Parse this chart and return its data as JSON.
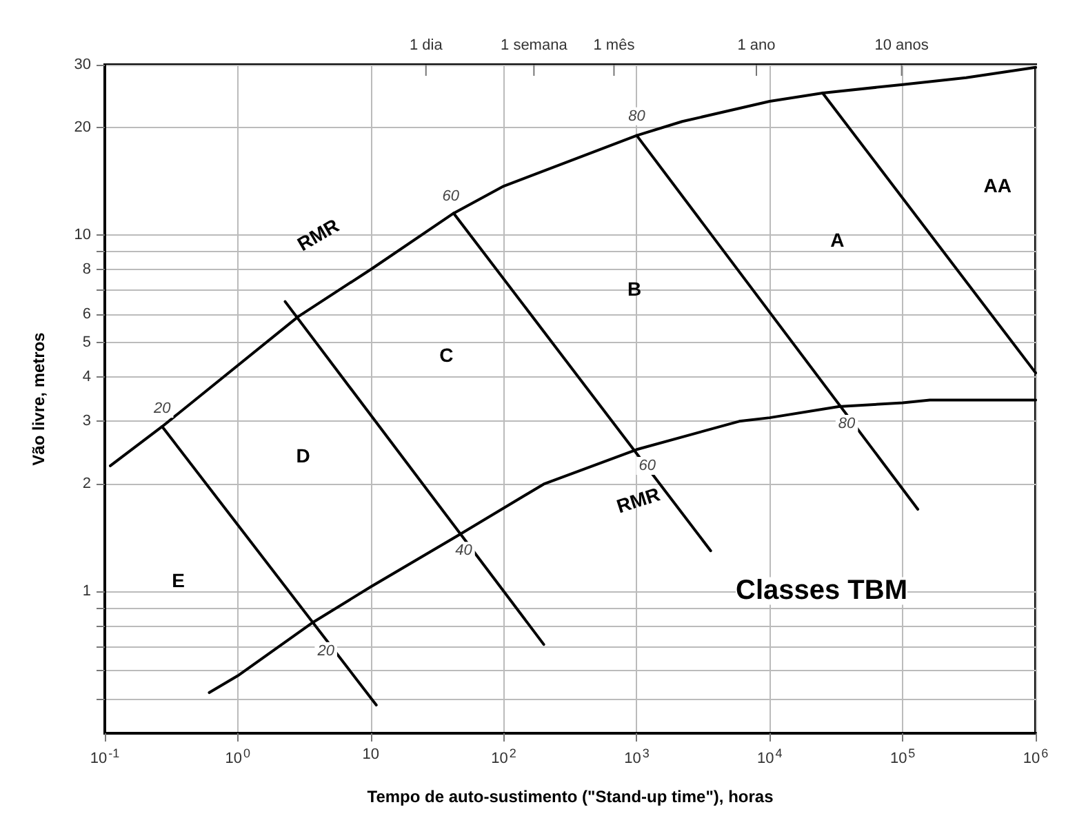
{
  "chart_data": {
    "type": "line",
    "xlabel": "Tempo de auto-sustimento (\"Stand-up time\"), horas",
    "ylabel": "Vão livre, metros",
    "log": "xy",
    "grid": true,
    "marker": "none",
    "line_style": "solid",
    "xlim": [
      0.1,
      1000000
    ],
    "xticks": [
      {
        "value": 0.1,
        "label": "10$^{-1}$"
      },
      {
        "value": 1,
        "label": "10$^{0}$"
      },
      10,
      {
        "value": 100,
        "label": "10$^{2}$"
      },
      {
        "value": 1000,
        "label": "10$^{3}$"
      },
      {
        "value": 10000,
        "label": "10$^{4}$"
      },
      {
        "value": 100000,
        "label": "10$^{5}$"
      },
      {
        "value": 1000000,
        "label": "10$^{6}$"
      }
    ],
    "ylim": [
      0.4,
      30
    ],
    "yticks": [
      {
        "value": 0.5,
        "label": null
      },
      {
        "value": 0.6,
        "label": null
      },
      {
        "value": 0.7,
        "label": null
      },
      {
        "value": 0.8,
        "label": null
      },
      {
        "value": 0.9,
        "label": null
      },
      1,
      2,
      3,
      4,
      5,
      6,
      {
        "value": 7,
        "label": null
      },
      8,
      {
        "value": 9,
        "label": null
      },
      10,
      20,
      30
    ],
    "series": [
      {
        "color": "#000000",
        "x": [
          0.11,
          0.27,
          2.85,
          10,
          42,
          100,
          1000,
          2200,
          10000,
          25000,
          100000,
          300000,
          1000000
        ],
        "values": [
          2.25,
          2.9,
          5.9,
          8.0,
          11.5,
          13.7,
          19,
          20.8,
          23.7,
          25,
          26.4,
          27.6,
          29.5
        ]
      },
      {
        "color": "#000000",
        "x": [
          0.61,
          1,
          3.7,
          10,
          46,
          200,
          1000,
          5900,
          10000,
          33000,
          100000,
          160000,
          1000000
        ],
        "values": [
          0.52,
          0.58,
          0.82,
          1.03,
          1.44,
          2.0,
          2.5,
          3.0,
          3.07,
          3.3,
          3.38,
          3.44,
          3.44
        ]
      },
      {
        "color": "#000000",
        "x": [
          0.27,
          11
        ],
        "values": [
          2.9,
          0.48
        ]
      },
      {
        "color": "#000000",
        "x": [
          2.27,
          200
        ],
        "values": [
          6.5,
          0.71
        ]
      },
      {
        "color": "#000000",
        "x": [
          42,
          3600
        ],
        "values": [
          11.5,
          1.3
        ]
      },
      {
        "color": "#000000",
        "x": [
          1000,
          130000
        ],
        "values": [
          19,
          1.7
        ]
      },
      {
        "color": "#000000",
        "x": [
          25000,
          1000000
        ],
        "values": [
          25,
          4.1
        ]
      }
    ],
    "annotations": [
      "1 dia",
      "1 semana",
      "1 mês",
      "1 ano",
      "10 anos",
      {
        "text": "20",
        "x": 0.27,
        "y": 3.25
      },
      {
        "text": "60",
        "x": 40,
        "y": 12.8
      },
      {
        "text": "80",
        "x": 1000,
        "y": 21.5
      },
      {
        "text": "20",
        "x": 4.6,
        "y": 0.68
      },
      {
        "text": "40",
        "x": 50,
        "y": 1.3
      },
      {
        "text": "60",
        "x": 1200,
        "y": 2.25
      },
      {
        "text": "80",
        "x": 38000,
        "y": 2.95
      },
      "RMR",
      "RMR",
      "AA",
      "A",
      "B",
      "C",
      "D",
      "E",
      "Classes TBM"
    ]
  }
}
